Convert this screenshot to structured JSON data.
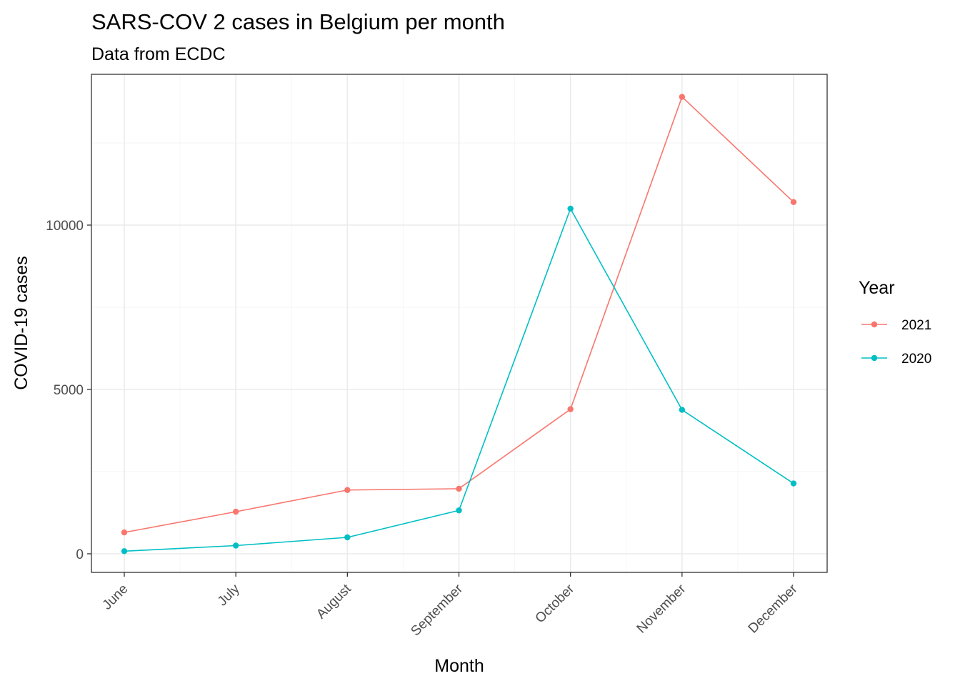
{
  "chart_data": {
    "type": "line",
    "title": "SARS-COV 2 cases in Belgium per month",
    "subtitle": "Data from ECDC",
    "xlabel": "Month",
    "ylabel": "COVID-19 cases",
    "categories": [
      "June",
      "July",
      "August",
      "September",
      "October",
      "November",
      "December"
    ],
    "y_ticks": [
      0,
      5000,
      10000
    ],
    "y_tick_labels": [
      "0",
      "5000",
      "10000"
    ],
    "ylim": [
      -600,
      14700
    ],
    "grid": true,
    "legend": {
      "title": "Year",
      "position": "right"
    },
    "series": [
      {
        "name": "2021",
        "color": "#F8766D",
        "values": [
          650,
          1280,
          1940,
          1980,
          4400,
          13900,
          10700
        ]
      },
      {
        "name": "2020",
        "color": "#00BFC4",
        "values": [
          80,
          250,
          500,
          1320,
          10500,
          4380,
          2140
        ]
      }
    ]
  }
}
